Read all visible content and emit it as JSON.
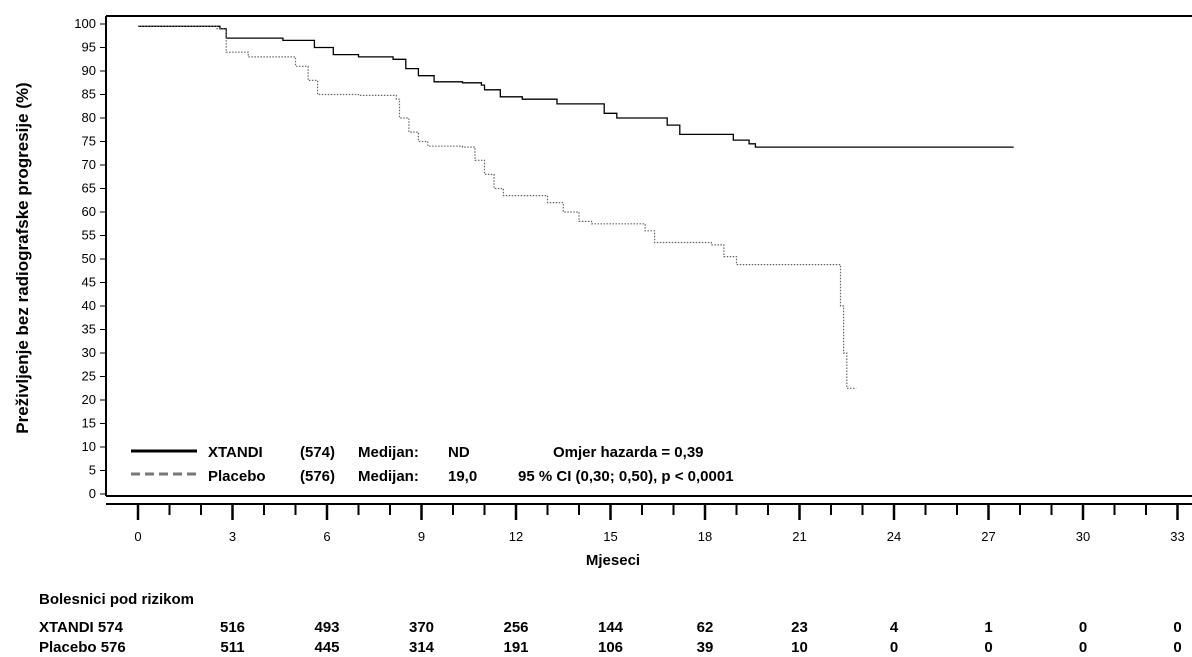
{
  "chart_data": {
    "type": "line",
    "ylabel": "Preživljenje bez radiografske progresije (%)",
    "xlabel": "Mjeseci",
    "xlim": [
      0,
      33
    ],
    "ylim": [
      0,
      100
    ],
    "x_ticks": [
      0,
      3,
      6,
      9,
      12,
      15,
      18,
      21,
      24,
      27,
      30,
      33
    ],
    "y_ticks": [
      0,
      5,
      10,
      15,
      20,
      25,
      30,
      35,
      40,
      45,
      50,
      55,
      60,
      65,
      70,
      75,
      80,
      85,
      90,
      95,
      100
    ],
    "series": [
      {
        "name": "XTANDI",
        "n": "(574)",
        "median_label": "Medijan:",
        "median": "ND",
        "color": "#000000",
        "style": "solid",
        "points": [
          [
            0,
            99.5
          ],
          [
            2.6,
            99
          ],
          [
            2.8,
            97
          ],
          [
            4.6,
            96.5
          ],
          [
            5.6,
            95
          ],
          [
            6.2,
            93.5
          ],
          [
            7,
            93
          ],
          [
            8.1,
            92.5
          ],
          [
            8.5,
            90.5
          ],
          [
            8.9,
            89
          ],
          [
            9.4,
            87.7
          ],
          [
            10.3,
            87.5
          ],
          [
            10.9,
            87
          ],
          [
            11,
            86
          ],
          [
            11.5,
            84.5
          ],
          [
            12.2,
            84
          ],
          [
            13.3,
            83
          ],
          [
            14.8,
            81
          ],
          [
            15.2,
            80
          ],
          [
            16.8,
            78.5
          ],
          [
            17.2,
            76.5
          ],
          [
            18.9,
            75.3
          ],
          [
            19.4,
            74.5
          ],
          [
            19.6,
            73.8
          ],
          [
            27.8,
            73.8
          ]
        ]
      },
      {
        "name": "Placebo",
        "n": "(576)",
        "median_label": "Medijan:",
        "median": "19,0",
        "color": "#666666",
        "style": "dotted",
        "points": [
          [
            0,
            99.5
          ],
          [
            2.5,
            99
          ],
          [
            2.8,
            94
          ],
          [
            3.5,
            93
          ],
          [
            5,
            91
          ],
          [
            5.4,
            88
          ],
          [
            5.7,
            85
          ],
          [
            7,
            84.8
          ],
          [
            8.2,
            84
          ],
          [
            8.3,
            80
          ],
          [
            8.6,
            77
          ],
          [
            8.9,
            75
          ],
          [
            9.2,
            74
          ],
          [
            10.3,
            73.8
          ],
          [
            10.7,
            71
          ],
          [
            11,
            68
          ],
          [
            11.3,
            65
          ],
          [
            11.6,
            63.5
          ],
          [
            13,
            62
          ],
          [
            13.5,
            60
          ],
          [
            14,
            58
          ],
          [
            14.4,
            57.5
          ],
          [
            16.1,
            56
          ],
          [
            16.4,
            53.5
          ],
          [
            18.2,
            53
          ],
          [
            18.6,
            50.5
          ],
          [
            19,
            48.8
          ],
          [
            22.2,
            48.8
          ],
          [
            22.3,
            40
          ],
          [
            22.4,
            30
          ],
          [
            22.5,
            22.5
          ],
          [
            22.8,
            22.5
          ]
        ]
      }
    ],
    "legend": {
      "placement": "bottom-left",
      "hazard_ratio": "Omjer hazarda = 0,39",
      "ci_text": "95 % CI (0,30; 0,50), p < 0,0001"
    },
    "risk_table": {
      "title": "Bolesnici pod rizikom",
      "rows": [
        {
          "label": "XTANDI 574",
          "values": [
            "516",
            "493",
            "370",
            "256",
            "144",
            "62",
            "23",
            "4",
            "1",
            "0",
            "0"
          ]
        },
        {
          "label": "Placebo 576",
          "values": [
            "511",
            "445",
            "314",
            "191",
            "106",
            "39",
            "10",
            "0",
            "0",
            "0",
            "0"
          ]
        }
      ]
    }
  }
}
